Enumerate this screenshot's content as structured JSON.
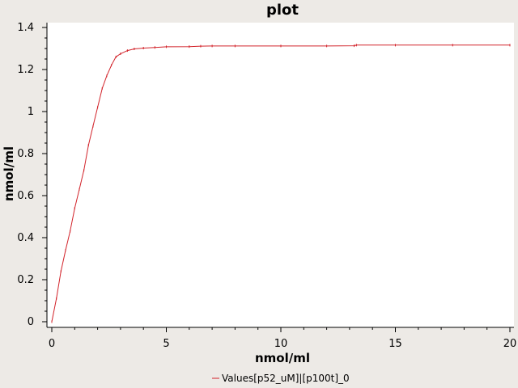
{
  "chart_data": {
    "type": "line",
    "title": "plot",
    "xlabel": "nmol/ml",
    "ylabel": "nmol/ml",
    "xlim": [
      0,
      20
    ],
    "ylim": [
      0,
      1.4
    ],
    "xticks": [
      "0",
      "5",
      "10",
      "15",
      "20"
    ],
    "yticks": [
      "0",
      "0.2",
      "0.4",
      "0.6",
      "0.8",
      "1",
      "1.2",
      "1.4"
    ],
    "grid": false,
    "legend_position": "bottom-center",
    "colors": {
      "series": "#d2232a",
      "plot_bg": "#ffffff",
      "page_bg": "#edeae6"
    },
    "series": [
      {
        "name": "Values[p52_uM]|[p100t]_0",
        "x": [
          0,
          0.2,
          0.4,
          0.6,
          0.8,
          1.0,
          1.2,
          1.4,
          1.6,
          1.8,
          2.0,
          2.2,
          2.4,
          2.6,
          2.8,
          3.0,
          3.3,
          3.6,
          4.0,
          4.5,
          5.0,
          6.0,
          6.5,
          7.0,
          8.0,
          10.0,
          12.0,
          13.2,
          13.3,
          15.0,
          17.5,
          20.0
        ],
        "y": [
          0.0,
          0.11,
          0.24,
          0.34,
          0.43,
          0.54,
          0.63,
          0.72,
          0.84,
          0.93,
          1.02,
          1.11,
          1.17,
          1.22,
          1.26,
          1.275,
          1.29,
          1.298,
          1.302,
          1.305,
          1.308,
          1.309,
          1.311,
          1.312,
          1.312,
          1.312,
          1.312,
          1.313,
          1.316,
          1.316,
          1.316,
          1.316
        ]
      }
    ]
  }
}
